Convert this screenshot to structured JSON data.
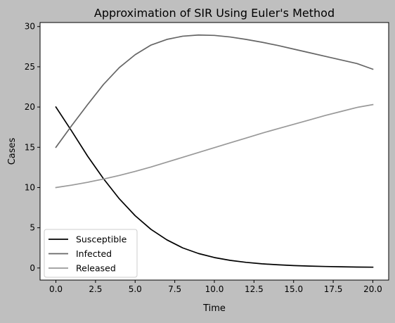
{
  "colors": {
    "figure_background": "#bfbfbf",
    "axes_background": "#ffffff",
    "axis_color": "#000000"
  },
  "chart_data": {
    "type": "line",
    "title": "Approximation of SIR Using Euler's Method",
    "xlabel": "Time",
    "ylabel": "Cases",
    "xlim": [
      -1,
      21
    ],
    "ylim": [
      -1.5,
      30.5
    ],
    "xticks": [
      0.0,
      2.5,
      5.0,
      7.5,
      10.0,
      12.5,
      15.0,
      17.5,
      20.0
    ],
    "xtick_labels": [
      "0.0",
      "2.5",
      "5.0",
      "7.5",
      "10.0",
      "12.5",
      "15.0",
      "17.5",
      "20.0"
    ],
    "yticks": [
      0,
      5,
      10,
      15,
      20,
      25,
      30
    ],
    "ytick_labels": [
      "0",
      "5",
      "10",
      "15",
      "20",
      "25",
      "30"
    ],
    "grid": false,
    "legend_position": "lower-left",
    "x": [
      0,
      1,
      2,
      3,
      4,
      5,
      6,
      7,
      8,
      9,
      10,
      11,
      12,
      13,
      14,
      15,
      16,
      17,
      18,
      19,
      20
    ],
    "series": [
      {
        "name": "Susceptible",
        "color": "#000000",
        "values": [
          20.0,
          17.0,
          13.9,
          11.1,
          8.6,
          6.5,
          4.8,
          3.5,
          2.5,
          1.8,
          1.3,
          0.95,
          0.7,
          0.52,
          0.4,
          0.3,
          0.24,
          0.19,
          0.15,
          0.12,
          0.1
        ]
      },
      {
        "name": "Infected",
        "color": "#666666",
        "values": [
          15.0,
          17.7,
          20.3,
          22.8,
          24.9,
          26.5,
          27.7,
          28.4,
          28.8,
          28.95,
          28.9,
          28.7,
          28.4,
          28.05,
          27.65,
          27.2,
          26.75,
          26.3,
          25.85,
          25.4,
          24.7
        ]
      },
      {
        "name": "Released",
        "color": "#999999",
        "values": [
          10.0,
          10.3,
          10.65,
          11.05,
          11.5,
          12.0,
          12.55,
          13.15,
          13.75,
          14.35,
          14.95,
          15.55,
          16.15,
          16.75,
          17.3,
          17.85,
          18.4,
          18.95,
          19.45,
          19.95,
          20.3
        ]
      }
    ]
  }
}
